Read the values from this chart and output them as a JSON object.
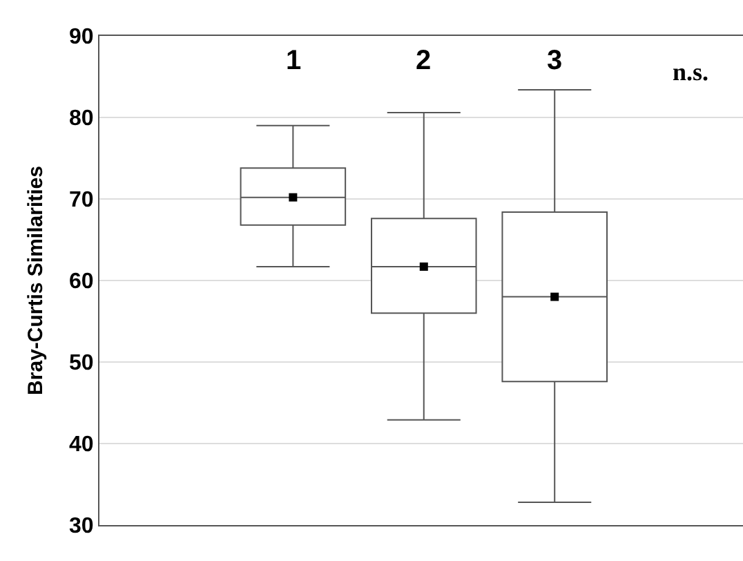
{
  "chart_data": {
    "type": "box",
    "ylabel": "Bray-Curtis Similarities",
    "categories": [
      "1",
      "2",
      "3"
    ],
    "boxes": [
      {
        "low": 61.7,
        "q1": 66.8,
        "median": 70.2,
        "q3": 73.8,
        "high": 79.0
      },
      {
        "low": 42.9,
        "q1": 56.0,
        "median": 61.7,
        "q3": 67.6,
        "high": 80.6
      },
      {
        "low": 32.8,
        "q1": 47.6,
        "median": 58.0,
        "q3": 68.4,
        "high": 83.4
      }
    ],
    "series": [
      {
        "type": "scatter",
        "x": [
          "1",
          "2",
          "3"
        ],
        "values": [
          70.2,
          61.7,
          58.0
        ],
        "color": "#000000",
        "marker": "square"
      }
    ],
    "ylim": [
      30,
      90
    ],
    "yticks": [
      30,
      40,
      50,
      60,
      70,
      80,
      90
    ],
    "grid": "y",
    "annotations": [
      "n.s."
    ]
  }
}
